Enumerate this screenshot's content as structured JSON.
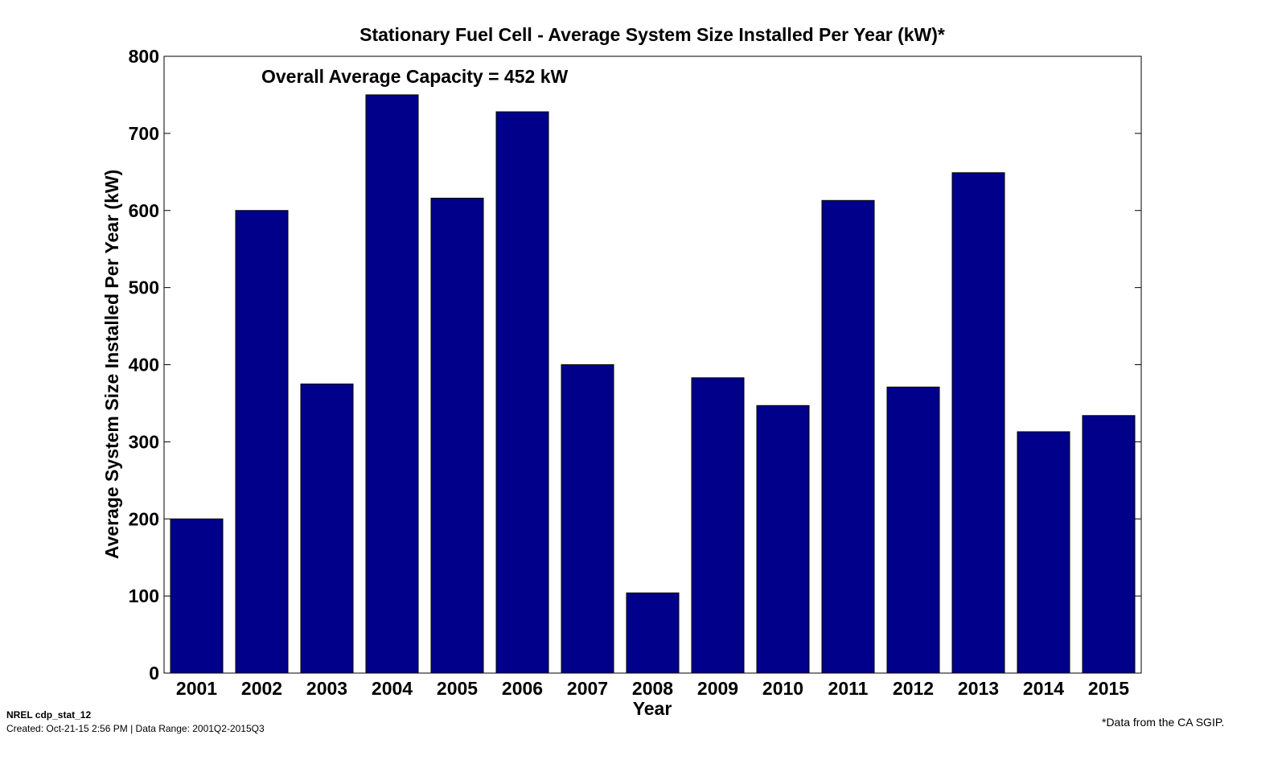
{
  "chart_data": {
    "type": "bar",
    "title": "Stationary Fuel Cell - Average System Size Installed Per Year (kW)*",
    "xlabel": "Year",
    "ylabel": "Average System Size Installed Per Year (kW)",
    "categories": [
      "2001",
      "2002",
      "2003",
      "2004",
      "2005",
      "2006",
      "2007",
      "2008",
      "2009",
      "2010",
      "2011",
      "2012",
      "2013",
      "2014",
      "2015"
    ],
    "values": [
      200,
      600,
      375,
      750,
      616,
      728,
      400,
      104,
      383,
      347,
      613,
      371,
      649,
      313,
      334
    ],
    "ylim": [
      0,
      800
    ],
    "yticks": [
      0,
      100,
      200,
      300,
      400,
      500,
      600,
      700,
      800
    ],
    "annotation": "Overall Average Capacity = 452 kW",
    "bar_color": "#00008B",
    "grid": false
  },
  "footer": {
    "id": "NREL cdp_stat_12",
    "created": "Created: Oct-21-15  2:56 PM | Data Range: 2001Q2-2015Q3",
    "source": "*Data from the CA SGIP."
  }
}
